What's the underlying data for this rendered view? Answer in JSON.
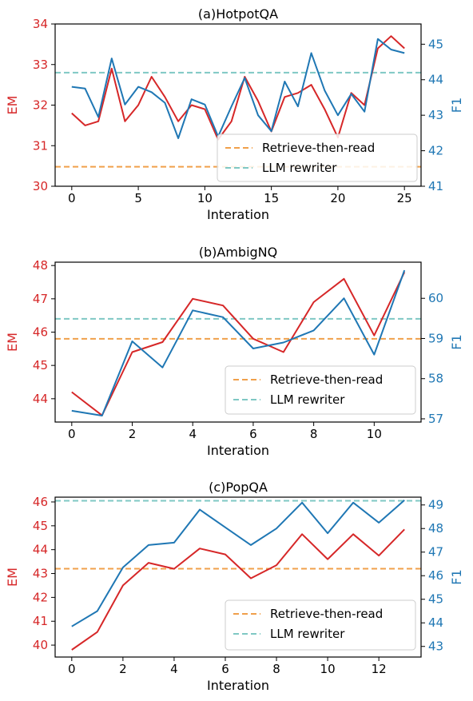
{
  "chart_data": [
    {
      "type": "line",
      "title": "(a)HotpotQA",
      "xlabel": "Interation",
      "ylabel_left": "EM",
      "ylabel_right": "F1",
      "x": [
        0,
        1,
        2,
        3,
        4,
        5,
        6,
        7,
        8,
        9,
        10,
        11,
        12,
        13,
        14,
        15,
        16,
        17,
        18,
        19,
        20,
        21,
        22,
        23,
        24,
        25
      ],
      "xlim": [
        -1.25,
        26.25
      ],
      "xticks": [
        0,
        5,
        10,
        15,
        20,
        25
      ],
      "ylim_left": [
        30,
        34
      ],
      "yticks_left": [
        30,
        31,
        32,
        33,
        34
      ],
      "ylim_right": [
        41,
        45.57
      ],
      "yticks_right": [
        41,
        42,
        43,
        44,
        45
      ],
      "series": [
        {
          "name": "EM",
          "axis": "left",
          "color": "#d62728",
          "values": [
            31.8,
            31.5,
            31.6,
            32.9,
            31.6,
            32.0,
            32.7,
            32.2,
            31.6,
            32.0,
            31.9,
            31.15,
            31.6,
            32.7,
            32.1,
            31.35,
            32.2,
            32.3,
            32.5,
            31.9,
            31.2,
            32.3,
            32.0,
            33.4,
            33.7,
            33.4
          ]
        },
        {
          "name": "F1",
          "axis": "right",
          "color": "#1f77b4",
          "values": [
            43.8,
            43.75,
            42.95,
            44.6,
            43.3,
            43.8,
            43.65,
            43.35,
            42.35,
            43.45,
            43.3,
            42.4,
            43.25,
            44.05,
            43.0,
            42.55,
            43.95,
            43.25,
            44.75,
            43.7,
            43.0,
            43.6,
            43.1,
            45.15,
            44.85,
            44.75
          ]
        }
      ],
      "ref_lines": [
        {
          "name": "Retrieve-then-read",
          "axis": "left",
          "value": 30.48,
          "color": "#f0a04b"
        },
        {
          "name": "LLM rewriter",
          "axis": "left",
          "value": 32.8,
          "color": "#7fc8c4"
        }
      ],
      "legend": [
        "Retrieve-then-read",
        "LLM rewriter"
      ],
      "legend_position": "lower-right"
    },
    {
      "type": "line",
      "title": "(b)AmbigNQ",
      "xlabel": "Interation",
      "ylabel_left": "EM",
      "ylabel_right": "F1",
      "x": [
        0,
        1,
        2,
        3,
        4,
        5,
        6,
        7,
        8,
        9,
        10,
        11
      ],
      "xlim": [
        -0.55,
        11.55
      ],
      "xticks": [
        0,
        2,
        4,
        6,
        8,
        10
      ],
      "ylim_left": [
        43.3,
        48.1
      ],
      "yticks_left": [
        44,
        45,
        46,
        47,
        48
      ],
      "ylim_right": [
        56.92,
        60.9
      ],
      "yticks_right": [
        57,
        58,
        59,
        60
      ],
      "series": [
        {
          "name": "EM",
          "axis": "left",
          "color": "#d62728",
          "values": [
            44.2,
            43.5,
            45.4,
            45.7,
            47.0,
            46.8,
            45.8,
            45.4,
            46.9,
            47.6,
            45.9,
            47.8
          ]
        },
        {
          "name": "F1",
          "axis": "right",
          "color": "#1f77b4",
          "values": [
            57.2,
            57.08,
            58.93,
            58.28,
            59.7,
            59.53,
            58.75,
            58.9,
            59.2,
            60.0,
            58.6,
            60.7
          ]
        }
      ],
      "ref_lines": [
        {
          "name": "Retrieve-then-read",
          "axis": "left",
          "value": 45.8,
          "color": "#f0a04b"
        },
        {
          "name": "LLM rewriter",
          "axis": "left",
          "value": 46.4,
          "color": "#7fc8c4"
        }
      ],
      "legend": [
        "Retrieve-then-read",
        "LLM rewriter"
      ],
      "legend_position": "lower-right"
    },
    {
      "type": "line",
      "title": "(c)PopQA",
      "xlabel": "Interation",
      "ylabel_left": "EM",
      "ylabel_right": "F1",
      "x": [
        0,
        1,
        2,
        3,
        4,
        5,
        6,
        7,
        8,
        9,
        10,
        11,
        12,
        13
      ],
      "xlim": [
        -0.65,
        13.65
      ],
      "xticks": [
        0,
        2,
        4,
        6,
        8,
        10,
        12
      ],
      "ylim_left": [
        39.5,
        46.2
      ],
      "yticks_left": [
        40,
        41,
        42,
        43,
        44,
        45,
        46
      ],
      "ylim_right": [
        42.55,
        49.33
      ],
      "yticks_right": [
        43,
        44,
        45,
        46,
        47,
        48,
        49
      ],
      "series": [
        {
          "name": "EM",
          "axis": "left",
          "color": "#d62728",
          "values": [
            39.8,
            40.55,
            42.5,
            43.45,
            43.2,
            44.05,
            43.8,
            42.8,
            43.35,
            44.65,
            43.6,
            44.65,
            43.75,
            44.85
          ]
        },
        {
          "name": "F1",
          "axis": "right",
          "color": "#1f77b4",
          "values": [
            43.85,
            44.5,
            46.35,
            47.3,
            47.4,
            48.8,
            48.05,
            47.3,
            48.0,
            49.1,
            47.8,
            49.1,
            48.25,
            49.2
          ]
        }
      ],
      "ref_lines": [
        {
          "name": "Retrieve-then-read",
          "axis": "left",
          "value": 43.2,
          "color": "#f0a04b"
        },
        {
          "name": "LLM rewriter",
          "axis": "left",
          "value": 46.05,
          "color": "#7fc8c4"
        }
      ],
      "legend": [
        "Retrieve-then-read",
        "LLM rewriter"
      ],
      "legend_position": "lower-right"
    }
  ],
  "colors": {
    "left_axis": "#d62728",
    "right_axis": "#1f77b4",
    "frame": "#000000"
  }
}
